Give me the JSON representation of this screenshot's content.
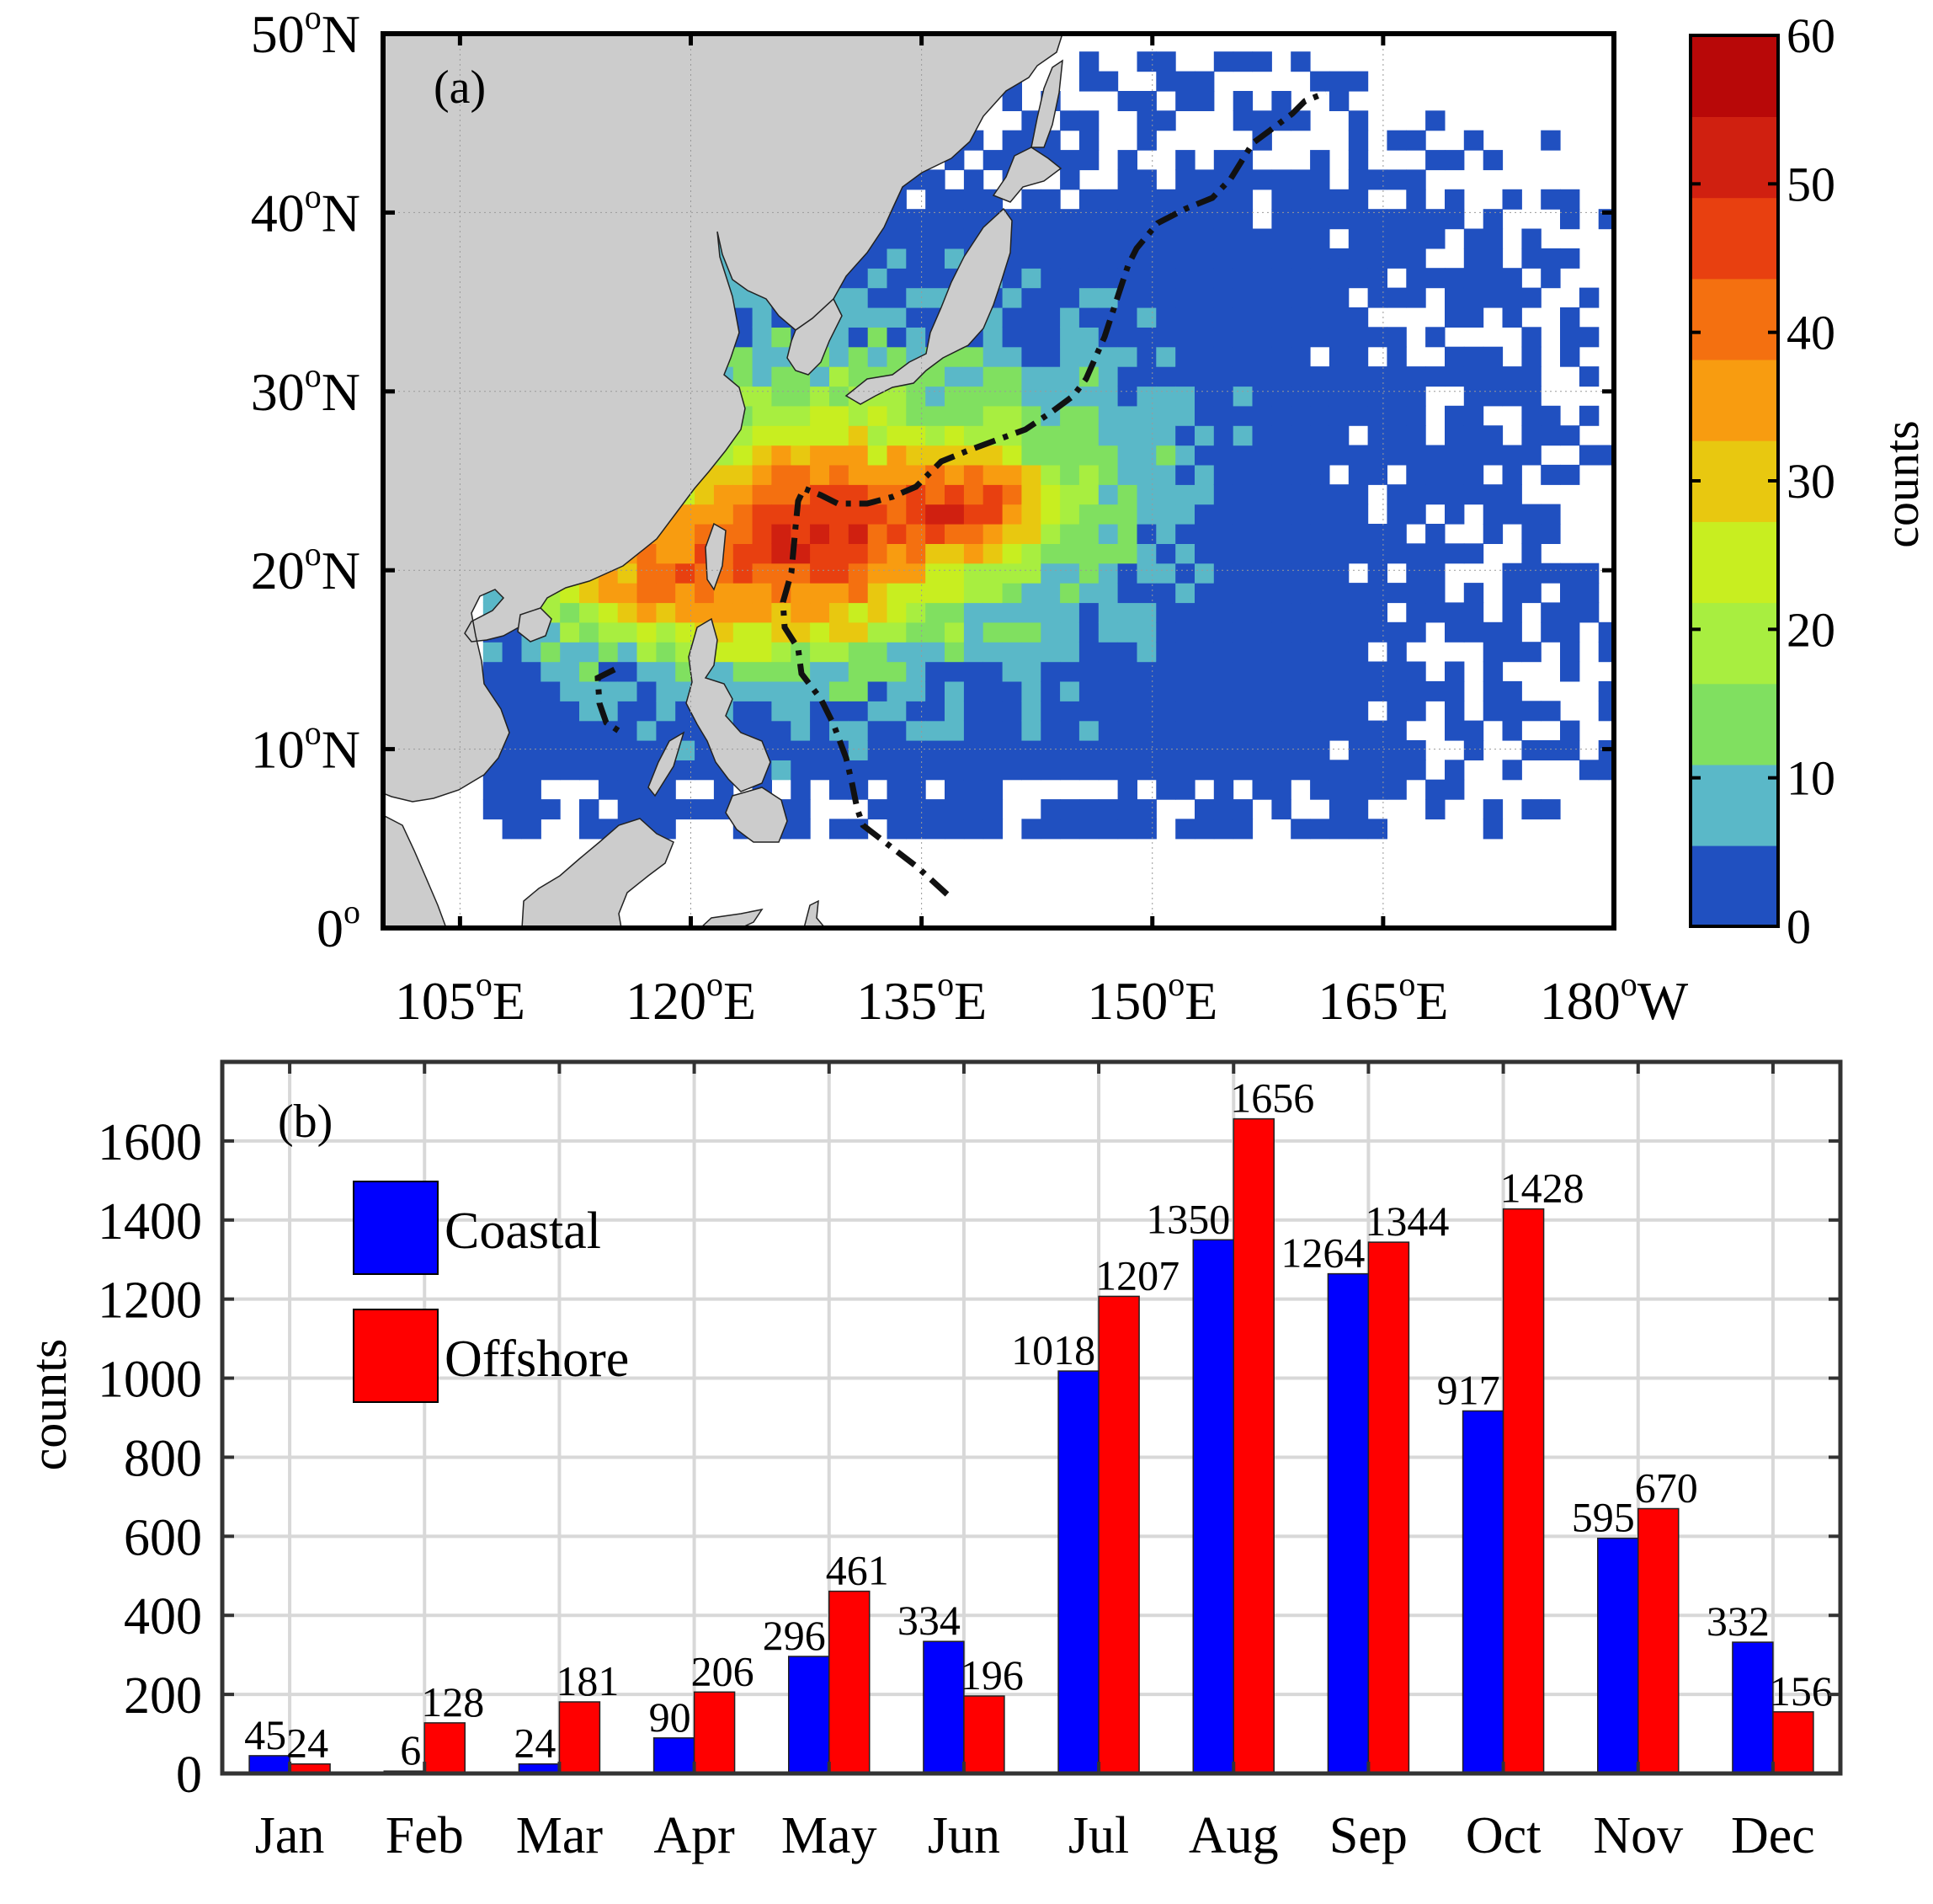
{
  "chart_data": [
    {
      "type": "heatmap",
      "panel_label": "(a)",
      "xlim": [
        100,
        180
      ],
      "ylim": [
        0,
        50
      ],
      "x_tick_values": [
        105,
        120,
        135,
        150,
        165,
        180
      ],
      "x_tick_labels": [
        {
          "num": "105",
          "sup": "o",
          "hem": "E"
        },
        {
          "num": "120",
          "sup": "o",
          "hem": "E"
        },
        {
          "num": "135",
          "sup": "o",
          "hem": "E"
        },
        {
          "num": "150",
          "sup": "o",
          "hem": "E"
        },
        {
          "num": "165",
          "sup": "o",
          "hem": "E"
        },
        {
          "num": "180",
          "sup": "o",
          "hem": "W"
        }
      ],
      "y_tick_values": [
        0,
        10,
        20,
        30,
        40,
        50
      ],
      "y_tick_labels": [
        {
          "num": "0",
          "sup": "o",
          "hem": ""
        },
        {
          "num": "10",
          "sup": "o",
          "hem": "N"
        },
        {
          "num": "20",
          "sup": "o",
          "hem": "N"
        },
        {
          "num": "30",
          "sup": "o",
          "hem": "N"
        },
        {
          "num": "40",
          "sup": "o",
          "hem": "N"
        },
        {
          "num": "50",
          "sup": "o",
          "hem": "N"
        }
      ],
      "colorbar": {
        "label": "counts",
        "range": [
          0,
          60
        ],
        "tick_values": [
          0,
          10,
          20,
          30,
          40,
          50,
          60
        ],
        "tick_labels": [
          "0",
          "10",
          "20",
          "30",
          "40",
          "50",
          "60"
        ],
        "colors": [
          "#2050c0",
          "#5ab8c8",
          "#80e060",
          "#a8ee40",
          "#c8ee20",
          "#e8c810",
          "#f89c10",
          "#f47010",
          "#e84010",
          "#d02010",
          "#b80808"
        ]
      },
      "land_color": "#cccccc",
      "boundary_line": {
        "style": "dash-dot",
        "color": "#111111"
      }
    },
    {
      "type": "bar",
      "panel_label": "(b)",
      "title": "",
      "xlabel": "",
      "ylabel": "counts",
      "ylim": [
        0,
        1800
      ],
      "y_ticks": [
        0,
        200,
        400,
        600,
        800,
        1000,
        1200,
        1400,
        1600
      ],
      "grid": true,
      "legend_position": "top-left",
      "categories": [
        "Jan",
        "Feb",
        "Mar",
        "Apr",
        "May",
        "Jun",
        "Jul",
        "Aug",
        "Sep",
        "Oct",
        "Nov",
        "Dec"
      ],
      "series": [
        {
          "name": "Coastal",
          "color": "#0000ff",
          "values": [
            45,
            6,
            24,
            90,
            296,
            334,
            1018,
            1350,
            1264,
            917,
            595,
            332
          ],
          "labels": [
            "45",
            "6",
            "24",
            "90",
            "296",
            "334",
            "1018",
            "1350",
            "1264",
            "917",
            "595",
            "332"
          ]
        },
        {
          "name": "Offshore",
          "color": "#ff0000",
          "values": [
            24,
            128,
            181,
            206,
            461,
            196,
            1207,
            1656,
            1344,
            1428,
            670,
            156
          ],
          "labels": [
            "24",
            "128",
            "181",
            "206",
            "461",
            "196",
            "1207",
            "1656",
            "1344",
            "1428",
            "670",
            "156"
          ]
        }
      ]
    }
  ]
}
